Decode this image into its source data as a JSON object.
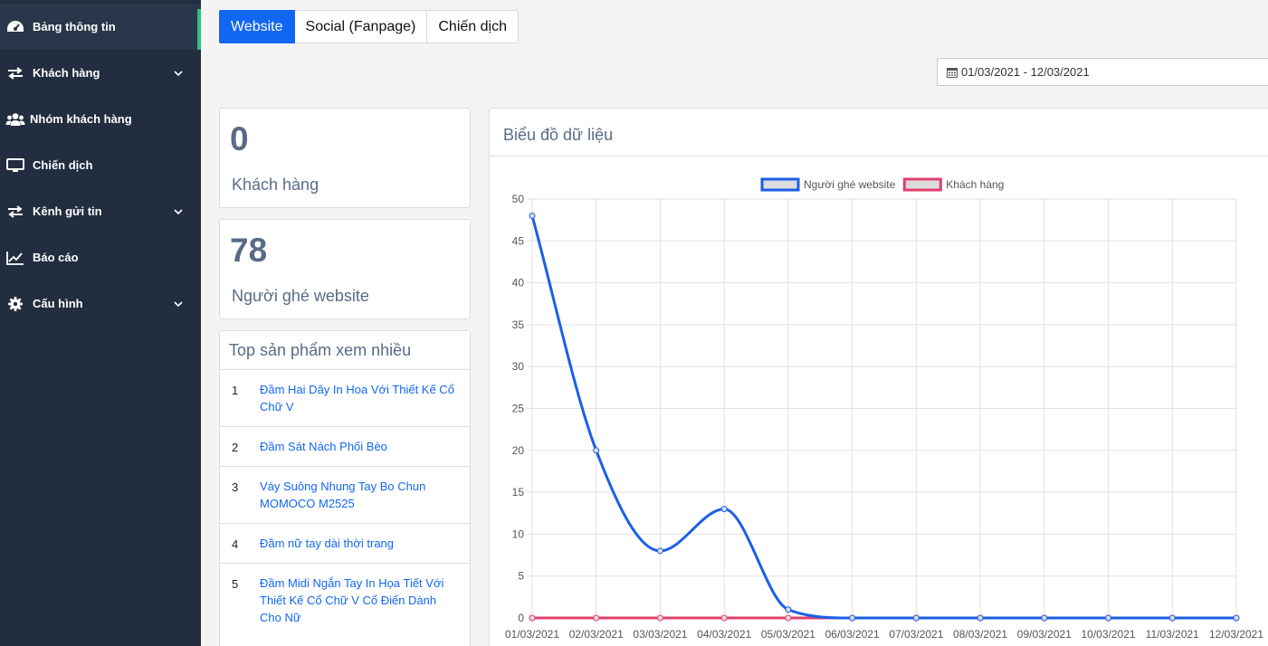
{
  "sidebar": {
    "items": [
      {
        "label": "Bảng thông tin",
        "icon": "dashboard-icon",
        "active": true
      },
      {
        "label": "Khách hàng",
        "icon": "exchange-icon",
        "has_chevron": true
      },
      {
        "label": "Nhóm khách hàng",
        "icon": "users-icon"
      },
      {
        "label": "Chiến dịch",
        "icon": "monitor-icon"
      },
      {
        "label": "Kênh gửi tin",
        "icon": "exchange-icon",
        "has_chevron": true
      },
      {
        "label": "Báo cáo",
        "icon": "line-chart-icon"
      },
      {
        "label": "Cấu hình",
        "icon": "gear-icon",
        "has_chevron": true
      }
    ]
  },
  "tabs": [
    {
      "label": "Website",
      "active": true
    },
    {
      "label": "Social (Fanpage)"
    },
    {
      "label": "Chiến dịch"
    }
  ],
  "date_range": {
    "value": "01/03/2021 - 12/03/2021",
    "icon": "calendar-icon"
  },
  "stats": [
    {
      "value": "0",
      "label": "Khách hàng"
    },
    {
      "value": "78",
      "label": "Người ghé website"
    }
  ],
  "top_products": {
    "title": "Top sản phẩm xem nhiều",
    "items": [
      {
        "rank": "1",
        "name": "Đầm Hai Dây In Hoa Với Thiết Kế Cổ Chữ V"
      },
      {
        "rank": "2",
        "name": "Đầm Sát Nách Phối Bèo"
      },
      {
        "rank": "3",
        "name": "Váy Suông Nhung Tay Bo Chun MOMOCO M2525"
      },
      {
        "rank": "4",
        "name": "Đầm nữ tay dài thời trang"
      },
      {
        "rank": "5",
        "name": "Đầm Midi Ngắn Tay In Họa Tiết Với Thiết Kế Cổ Chữ V Cổ Điển Dành Cho Nữ"
      }
    ]
  },
  "chart_card": {
    "title": "Biểu đồ dữ liệu"
  },
  "colors": {
    "primary": "#1267f2",
    "sidebar_bg": "#222d3f",
    "active_bar": "#2fbf84",
    "series_visitors": "#1a5fe8",
    "series_customers": "#e0406e"
  },
  "chart_data": {
    "type": "line",
    "x": [
      "01/03/2021",
      "02/03/2021",
      "03/03/2021",
      "04/03/2021",
      "05/03/2021",
      "06/03/2021",
      "07/03/2021",
      "08/03/2021",
      "09/03/2021",
      "10/03/2021",
      "11/03/2021",
      "12/03/2021"
    ],
    "series": [
      {
        "name": "Người ghé website",
        "color": "#1a5fe8",
        "values": [
          48,
          20,
          8,
          13,
          1,
          0,
          0,
          0,
          0,
          0,
          0,
          0
        ]
      },
      {
        "name": "Khách hàng",
        "color": "#e0406e",
        "values": [
          0,
          0,
          0,
          0,
          0,
          0,
          0,
          0,
          0,
          0,
          0,
          0
        ]
      }
    ],
    "ylim": [
      0,
      50
    ],
    "yticks": [
      0,
      5,
      10,
      15,
      20,
      25,
      30,
      35,
      40,
      45,
      50
    ],
    "grid": true,
    "legend": "top-center",
    "smooth": true
  }
}
